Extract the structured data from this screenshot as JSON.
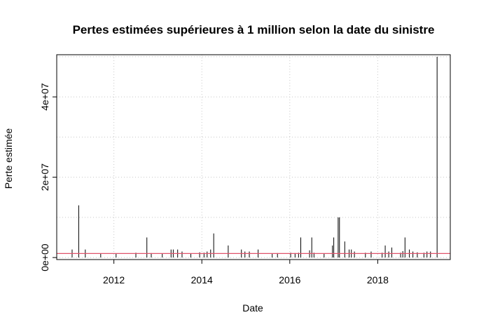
{
  "chart_data": {
    "type": "bar",
    "title": "Pertes estimées supérieures à 1 million selon la date du sinistre",
    "xlabel": "Date",
    "ylabel": "Perte estimée",
    "x_ticks": [
      2012,
      2014,
      2016,
      2018
    ],
    "x_tick_labels": [
      "2012",
      "2014",
      "2016",
      "2018"
    ],
    "y_ticks": [
      0,
      20000000,
      40000000
    ],
    "y_tick_labels": [
      "0e+00",
      "2e+07",
      "4e+07"
    ],
    "xlim": [
      2010.7,
      2019.65
    ],
    "ylim": [
      -500000,
      50500000
    ],
    "grid": true,
    "reference_line": {
      "y": 1000000,
      "color": "#DF536B"
    },
    "bar_color": "#000000",
    "x": [
      2011.05,
      2011.2,
      2011.35,
      2011.7,
      2012.05,
      2012.5,
      2012.75,
      2012.85,
      2013.1,
      2013.3,
      2013.35,
      2013.45,
      2013.55,
      2013.75,
      2013.95,
      2014.05,
      2014.12,
      2014.2,
      2014.27,
      2014.6,
      2014.9,
      2014.98,
      2015.08,
      2015.28,
      2015.6,
      2015.72,
      2016.02,
      2016.12,
      2016.2,
      2016.25,
      2016.45,
      2016.5,
      2016.55,
      2016.78,
      2016.97,
      2017.0,
      2017.1,
      2017.13,
      2017.25,
      2017.35,
      2017.4,
      2017.47,
      2017.72,
      2017.85,
      2018.1,
      2018.17,
      2018.25,
      2018.32,
      2018.52,
      2018.57,
      2018.62,
      2018.72,
      2018.8,
      2018.9,
      2019.05,
      2019.12,
      2019.2,
      2019.35
    ],
    "values": [
      2000000,
      13000000,
      2000000,
      1000000,
      1000000,
      1200000,
      5000000,
      1100000,
      1000000,
      2000000,
      2000000,
      2000000,
      1500000,
      1000000,
      1300000,
      1200000,
      1500000,
      2000000,
      6000000,
      3000000,
      2000000,
      1500000,
      1500000,
      2000000,
      1000000,
      1100000,
      1200000,
      1100000,
      1200000,
      5000000,
      1800000,
      5000000,
      1200000,
      1000000,
      3000000,
      5000000,
      10000000,
      10000000,
      4000000,
      2000000,
      2000000,
      1500000,
      1200000,
      1500000,
      1200000,
      3000000,
      1500000,
      2500000,
      1200000,
      1600000,
      5000000,
      2000000,
      1500000,
      1300000,
      1200000,
      1500000,
      1500000,
      50000000
    ]
  }
}
